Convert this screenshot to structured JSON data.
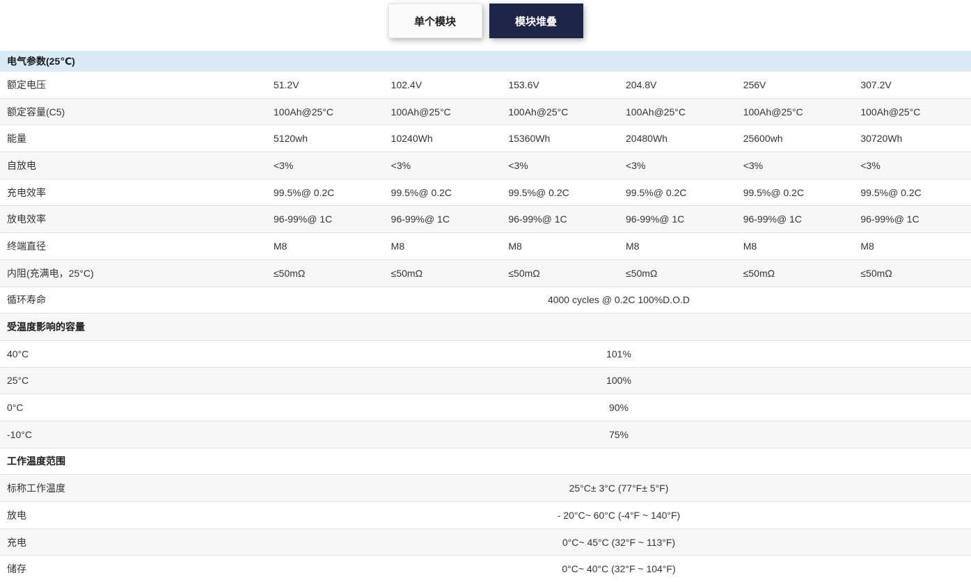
{
  "tabs": [
    {
      "label": "单个模块",
      "active": false
    },
    {
      "label": "模块堆叠",
      "active": true
    }
  ],
  "colors": {
    "section_highlight_bg": "#d8eaf6",
    "stripe_bg": "#f7f7f7",
    "row_border": "#e2e2e2",
    "active_tab_bg": "#1d2649",
    "active_tab_text": "#ffffff",
    "body_text": "#333333"
  },
  "table": {
    "rows": [
      {
        "type": "section",
        "highlight": true,
        "label": "电气参数(25℃)"
      },
      {
        "type": "values",
        "label": "额定电压",
        "values": [
          "51.2V",
          "102.4V",
          "153.6V",
          "204.8V",
          "256V",
          "307.2V"
        ]
      },
      {
        "type": "values",
        "label": "额定容量(C5)",
        "values": [
          "100Ah@25°C",
          "100Ah@25°C",
          "100Ah@25°C",
          "100Ah@25°C",
          "100Ah@25°C",
          "100Ah@25°C"
        ]
      },
      {
        "type": "values",
        "label": "能量",
        "values": [
          "5120wh",
          "10240Wh",
          "15360Wh",
          "20480Wh",
          "25600wh",
          "30720Wh"
        ]
      },
      {
        "type": "values",
        "label": "自放电",
        "values": [
          "<3%",
          "<3%",
          "<3%",
          "<3%",
          "<3%",
          "<3%"
        ]
      },
      {
        "type": "values",
        "label": "充电效率",
        "values": [
          "99.5%@ 0.2C",
          "99.5%@ 0.2C",
          "99.5%@ 0.2C",
          "99.5%@ 0.2C",
          "99.5%@ 0.2C",
          "99.5%@ 0.2C"
        ]
      },
      {
        "type": "values",
        "label": "放电效率",
        "values": [
          "96-99%@ 1C",
          "96-99%@ 1C",
          "96-99%@ 1C",
          "96-99%@ 1C",
          "96-99%@ 1C",
          "96-99%@ 1C"
        ]
      },
      {
        "type": "values",
        "label": "终端直径",
        "values": [
          "M8",
          "M8",
          "M8",
          "M8",
          "M8",
          "M8"
        ]
      },
      {
        "type": "values",
        "label": "内阻(充满电，25°C)",
        "values": [
          "≤50mΩ",
          "≤50mΩ",
          "≤50mΩ",
          "≤50mΩ",
          "≤50mΩ",
          "≤50mΩ"
        ]
      },
      {
        "type": "span",
        "label": "循环寿命",
        "value": "4000 cycles @ 0.2C 100%D.O.D"
      },
      {
        "type": "section",
        "label": "受温度影响的容量"
      },
      {
        "type": "span",
        "label": "40°C",
        "value": "101%"
      },
      {
        "type": "span",
        "label": "25°C",
        "value": "100%"
      },
      {
        "type": "span",
        "label": "0°C",
        "value": "90%"
      },
      {
        "type": "span",
        "label": "-10°C",
        "value": "75%"
      },
      {
        "type": "section",
        "label": "工作温度范围"
      },
      {
        "type": "span",
        "label": "标称工作温度",
        "value": "25°C± 3°C (77°F± 5°F)"
      },
      {
        "type": "span",
        "label": "放电",
        "value": "- 20°C~ 60°C (-4°F ~ 140°F)"
      },
      {
        "type": "span",
        "label": "充电",
        "value": "0°C~ 45°C (32°F ~ 113°F)"
      },
      {
        "type": "span",
        "label": "储存",
        "value": "0°C~ 40°C (32°F ~ 104°F)"
      }
    ]
  }
}
